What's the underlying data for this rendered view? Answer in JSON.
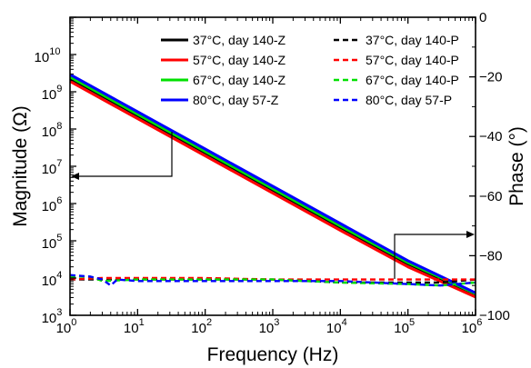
{
  "chart_data": {
    "type": "line",
    "title": "",
    "xlabel": "Frequency (Hz)",
    "ylabel_left": "Magnitude (Ω)",
    "ylabel_right": "Phase (°)",
    "x_scale": "log",
    "y_left_scale": "log",
    "xlim": [
      1,
      1000000
    ],
    "ylim_left": [
      1000,
      100000000000
    ],
    "ylim_right": [
      -100,
      0
    ],
    "x_tick_labels": [
      {
        "base": "10",
        "exp": "0"
      },
      {
        "base": "10",
        "exp": "1"
      },
      {
        "base": "10",
        "exp": "2"
      },
      {
        "base": "10",
        "exp": "3"
      },
      {
        "base": "10",
        "exp": "4"
      },
      {
        "base": "10",
        "exp": "5"
      },
      {
        "base": "10",
        "exp": "6"
      }
    ],
    "y_left_tick_labels": [
      {
        "base": "10",
        "exp": "3"
      },
      {
        "base": "10",
        "exp": "4"
      },
      {
        "base": "10",
        "exp": "5"
      },
      {
        "base": "10",
        "exp": "6"
      },
      {
        "base": "10",
        "exp": "7"
      },
      {
        "base": "10",
        "exp": "8"
      },
      {
        "base": "10",
        "exp": "9"
      },
      {
        "base": "10",
        "exp": "10"
      }
    ],
    "y_right_ticks": [
      0,
      -20,
      -40,
      -60,
      -80,
      -100
    ],
    "grid": false,
    "legend_position": "top",
    "series": [
      {
        "name": "37°C, day 140-Z",
        "axis": "left",
        "color": "#000000",
        "dash": "solid",
        "x": [
          1,
          10,
          100,
          1000,
          10000,
          100000,
          1000000
        ],
        "y": [
          2300000000,
          230000000,
          23000000,
          2300000,
          230000,
          24000,
          3600
        ]
      },
      {
        "name": "57°C, day 140-Z",
        "axis": "left",
        "color": "#ff0000",
        "dash": "solid",
        "x": [
          1,
          10,
          100,
          1000,
          10000,
          100000,
          1000000
        ],
        "y": [
          1900000000,
          190000000,
          19000000,
          1900000,
          190000,
          20000,
          3100
        ]
      },
      {
        "name": "67°C, day 140-Z",
        "axis": "left",
        "color": "#00e000",
        "dash": "solid",
        "x": [
          1,
          10,
          100,
          1000,
          10000,
          100000,
          1000000
        ],
        "y": [
          2500000000,
          250000000,
          25000000,
          2500000,
          250000,
          26000,
          3800
        ]
      },
      {
        "name": "80°C, day 57-Z",
        "axis": "left",
        "color": "#0000ff",
        "dash": "solid",
        "x": [
          1,
          10,
          100,
          1000,
          10000,
          100000,
          1000000
        ],
        "y": [
          2900000000,
          290000000,
          29000000,
          2900000,
          290000,
          29000,
          4000
        ]
      },
      {
        "name": "37°C, day 140-P",
        "axis": "right",
        "color": "#000000",
        "dash": "dashed",
        "x": [
          1,
          3,
          10,
          100,
          1000,
          10000,
          100000,
          300000,
          1000000
        ],
        "y": [
          -88,
          -88,
          -88,
          -88,
          -88,
          -89,
          -89,
          -89,
          -88
        ]
      },
      {
        "name": "57°C, day 140-P",
        "axis": "right",
        "color": "#ff0000",
        "dash": "dashed",
        "x": [
          1,
          3,
          10,
          100,
          1000,
          10000,
          100000,
          300000,
          1000000
        ],
        "y": [
          -88,
          -87.5,
          -87.5,
          -87.5,
          -88,
          -88,
          -88,
          -88,
          -88
        ]
      },
      {
        "name": "67°C, day 140-P",
        "axis": "right",
        "color": "#00e000",
        "dash": "dashed",
        "x": [
          1,
          2,
          3,
          10,
          100,
          1000,
          10000,
          100000,
          300000,
          1000000
        ],
        "y": [
          -87,
          -87,
          -88.5,
          -88,
          -88,
          -88,
          -89,
          -89.5,
          -90,
          -89
        ]
      },
      {
        "name": "80°C, day 57-P",
        "axis": "right",
        "color": "#0000ff",
        "dash": "dashed",
        "x": [
          1,
          2,
          3,
          4,
          5,
          10,
          100,
          1000,
          10000,
          100000,
          300000,
          1000000
        ],
        "y": [
          -86.5,
          -87,
          -88,
          -90,
          -88,
          -88.5,
          -88.5,
          -88.5,
          -88.5,
          -89.5,
          -90,
          -89
        ]
      }
    ]
  }
}
